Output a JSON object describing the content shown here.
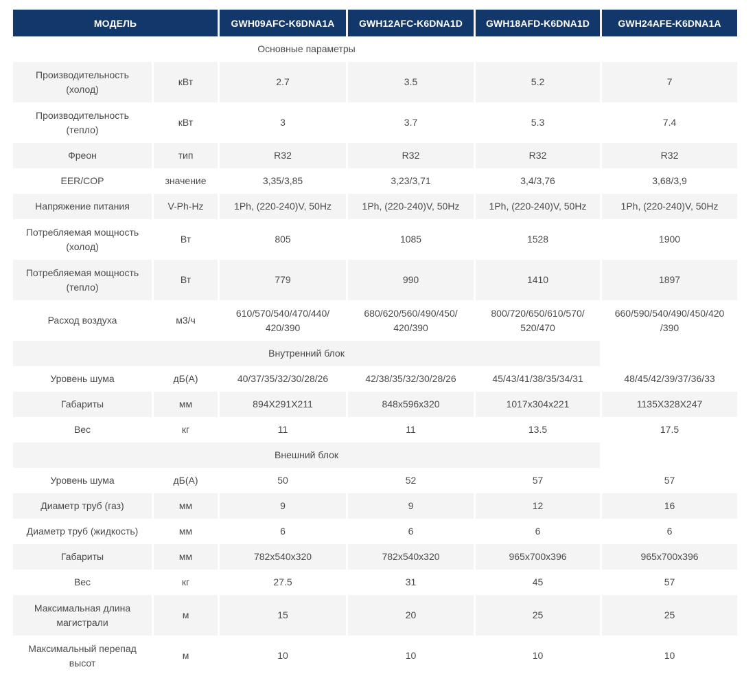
{
  "colors": {
    "header_bg": "#12386B",
    "header_text": "#FFFFFF",
    "zebra_row": "#F4F4F4",
    "body_text": "#4A4A4A"
  },
  "header": {
    "model_label": "МОДЕЛЬ",
    "models": [
      "GWH09AFC-K6DNA1A",
      "GWH12AFC-K6DNA1D",
      "GWH18AFD-K6DNA1D",
      "GWH24AFE-K6DNA1A"
    ]
  },
  "rows": [
    {
      "type": "section",
      "label": "Основные параметры"
    },
    {
      "label": "Производительность (холод)",
      "unit": "кВт",
      "values": [
        "2.7",
        "3.5",
        "5.2",
        "7"
      ]
    },
    {
      "label": "Производительность (тепло)",
      "unit": "кВт",
      "values": [
        "3",
        "3.7",
        "5.3",
        "7.4"
      ]
    },
    {
      "label": "Фреон",
      "unit": "тип",
      "values": [
        "R32",
        "R32",
        "R32",
        "R32"
      ]
    },
    {
      "label": "EER/COP",
      "unit": "значение",
      "values": [
        "3,35/3,85",
        "3,23/3,71",
        "3,4/3,76",
        "3,68/3,9"
      ]
    },
    {
      "label": "Напряжение питания",
      "unit": "V-Ph-Hz",
      "values": [
        "1Ph, (220-240)V, 50Hz",
        "1Ph, (220-240)V, 50Hz",
        "1Ph, (220-240)V, 50Hz",
        "1Ph, (220-240)V, 50Hz"
      ]
    },
    {
      "label": "Потребляемая мощность (холод)",
      "unit": "Вт",
      "values": [
        "805",
        "1085",
        "1528",
        "1900"
      ]
    },
    {
      "label": "Потребляемая мощность (тепло)",
      "unit": "Вт",
      "values": [
        "779",
        "990",
        "1410",
        "1897"
      ]
    },
    {
      "label": "Расход воздуха",
      "unit": "м3/ч",
      "values": [
        "610/570/540/470/440/ 420/390",
        "680/620/560/490/450/ 420/390",
        "800/720/650/610/570/ 520/470",
        "660/590/540/490/450/420 /390"
      ]
    },
    {
      "type": "section",
      "label": "Внутренний блок"
    },
    {
      "label": "Уровень шума",
      "unit": "дБ(А)",
      "values": [
        "40/37/35/32/30/28/26",
        "42/38/35/32/30/28/26",
        "45/43/41/38/35/34/31",
        "48/45/42/39/37/36/33"
      ]
    },
    {
      "label": "Габариты",
      "unit": "мм",
      "values": [
        "894X291X211",
        "848x596x320",
        "1017x304x221",
        "1135X328X247"
      ]
    },
    {
      "label": "Вес",
      "unit": "кг",
      "values": [
        "11",
        "11",
        "13.5",
        "17.5"
      ]
    },
    {
      "type": "section",
      "label": "Внешний блок"
    },
    {
      "label": "Уровень шума",
      "unit": "дБ(А)",
      "values": [
        "50",
        "52",
        "57",
        "57"
      ]
    },
    {
      "label": "Диаметр труб (газ)",
      "unit": "мм",
      "values": [
        "9",
        "9",
        "12",
        "16"
      ]
    },
    {
      "label": "Диаметр труб (жидкость)",
      "unit": "мм",
      "values": [
        "6",
        "6",
        "6",
        "6"
      ]
    },
    {
      "label": "Габариты",
      "unit": "мм",
      "values": [
        "782x540x320",
        "782x540x320",
        "965x700x396",
        "965x700x396"
      ]
    },
    {
      "label": "Вес",
      "unit": "кг",
      "values": [
        "27.5",
        "31",
        "45",
        "57"
      ]
    },
    {
      "label": "Максимальная длина магистрали",
      "unit": "м",
      "values": [
        "15",
        "20",
        "25",
        "25"
      ]
    },
    {
      "label": "Максимальный перепад высот",
      "unit": "м",
      "values": [
        "10",
        "10",
        "10",
        "10"
      ]
    }
  ]
}
